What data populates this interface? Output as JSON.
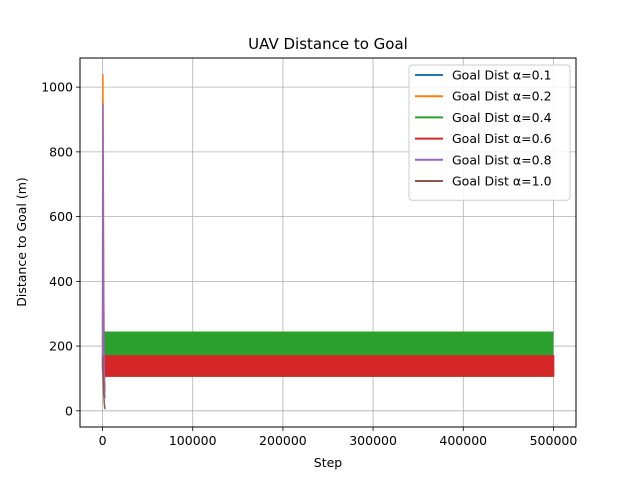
{
  "chart_data": {
    "type": "line",
    "title": "UAV Distance to Goal",
    "xlabel": "Step",
    "ylabel": "Distance to Goal (m)",
    "xlim": [
      -25000,
      525000
    ],
    "ylim": [
      -50,
      1090
    ],
    "x_ticks": [
      0,
      100000,
      200000,
      300000,
      400000,
      500000
    ],
    "x_tick_labels": [
      "0",
      "100000",
      "200000",
      "300000",
      "400000",
      "500000"
    ],
    "y_ticks": [
      0,
      200,
      400,
      600,
      800,
      1000
    ],
    "y_tick_labels": [
      "0",
      "200",
      "400",
      "600",
      "800",
      "1000"
    ],
    "grid": true,
    "legend_placement": "top-right",
    "series": [
      {
        "name": "Goal Dist α=0.1",
        "color": "#1f77b4",
        "x": [
          0,
          300,
          800,
          1500,
          2500
        ],
        "y": [
          190,
          150,
          110,
          70,
          40
        ],
        "band": null
      },
      {
        "name": "Goal Dist α=0.2",
        "color": "#ff7f0e",
        "x": [
          0,
          400,
          900,
          1400,
          2000,
          2600
        ],
        "y": [
          200,
          1040,
          700,
          350,
          150,
          60
        ],
        "band": null
      },
      {
        "name": "Goal Dist α=0.4",
        "color": "#2ca02c",
        "x": [
          0,
          600,
          1500,
          2500,
          500000
        ],
        "y": [
          130,
          240,
          210,
          190,
          190
        ],
        "band": [
          105,
          245
        ]
      },
      {
        "name": "Goal Dist α=0.6",
        "color": "#d62728",
        "x": [
          0,
          600,
          1500,
          2500,
          501000
        ],
        "y": [
          150,
          170,
          140,
          130,
          130
        ],
        "band": [
          105,
          172
        ]
      },
      {
        "name": "Goal Dist α=0.8",
        "color": "#9467bd",
        "x": [
          0,
          300,
          700,
          1200,
          1800,
          2400
        ],
        "y": [
          120,
          950,
          600,
          300,
          120,
          40
        ],
        "band": null
      },
      {
        "name": "Goal Dist α=1.0",
        "color": "#8c564b",
        "x": [
          0,
          500,
          1200,
          2000,
          2800
        ],
        "y": [
          170,
          110,
          60,
          20,
          5
        ],
        "band": null
      }
    ]
  }
}
